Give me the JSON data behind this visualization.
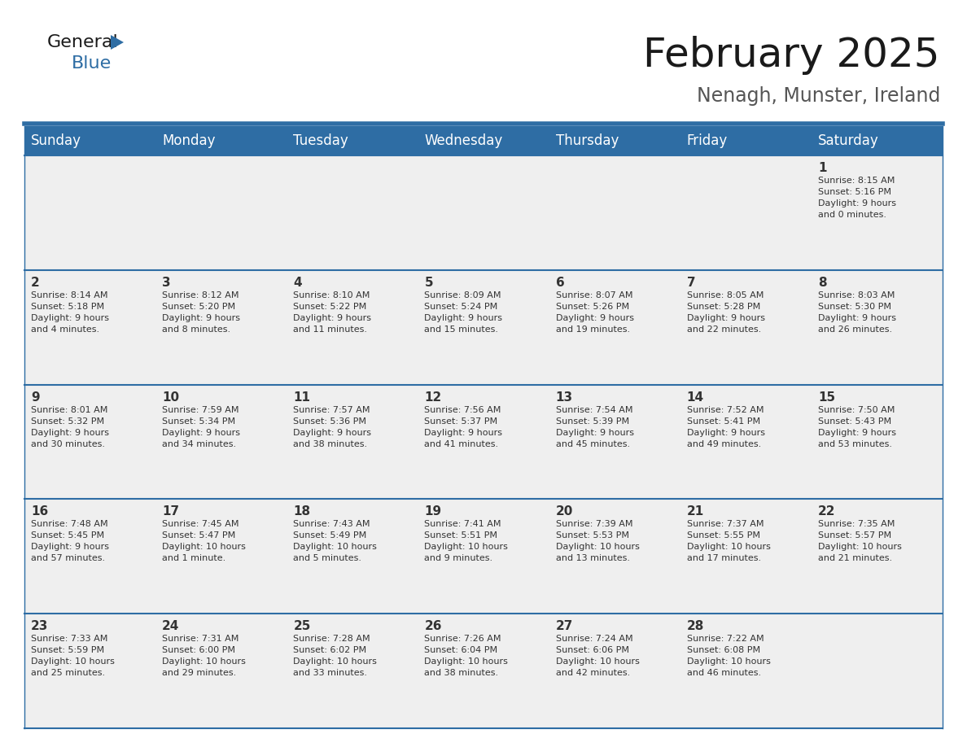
{
  "title": "February 2025",
  "subtitle": "Nenagh, Munster, Ireland",
  "header_color": "#2E6DA4",
  "header_text_color": "#FFFFFF",
  "cell_bg_color": "#EFEFEF",
  "white_bg": "#FFFFFF",
  "border_color": "#2E6DA4",
  "text_color": "#333333",
  "days_of_week": [
    "Sunday",
    "Monday",
    "Tuesday",
    "Wednesday",
    "Thursday",
    "Friday",
    "Saturday"
  ],
  "weeks": [
    [
      {
        "day": "",
        "info": ""
      },
      {
        "day": "",
        "info": ""
      },
      {
        "day": "",
        "info": ""
      },
      {
        "day": "",
        "info": ""
      },
      {
        "day": "",
        "info": ""
      },
      {
        "day": "",
        "info": ""
      },
      {
        "day": "1",
        "info": "Sunrise: 8:15 AM\nSunset: 5:16 PM\nDaylight: 9 hours\nand 0 minutes."
      }
    ],
    [
      {
        "day": "2",
        "info": "Sunrise: 8:14 AM\nSunset: 5:18 PM\nDaylight: 9 hours\nand 4 minutes."
      },
      {
        "day": "3",
        "info": "Sunrise: 8:12 AM\nSunset: 5:20 PM\nDaylight: 9 hours\nand 8 minutes."
      },
      {
        "day": "4",
        "info": "Sunrise: 8:10 AM\nSunset: 5:22 PM\nDaylight: 9 hours\nand 11 minutes."
      },
      {
        "day": "5",
        "info": "Sunrise: 8:09 AM\nSunset: 5:24 PM\nDaylight: 9 hours\nand 15 minutes."
      },
      {
        "day": "6",
        "info": "Sunrise: 8:07 AM\nSunset: 5:26 PM\nDaylight: 9 hours\nand 19 minutes."
      },
      {
        "day": "7",
        "info": "Sunrise: 8:05 AM\nSunset: 5:28 PM\nDaylight: 9 hours\nand 22 minutes."
      },
      {
        "day": "8",
        "info": "Sunrise: 8:03 AM\nSunset: 5:30 PM\nDaylight: 9 hours\nand 26 minutes."
      }
    ],
    [
      {
        "day": "9",
        "info": "Sunrise: 8:01 AM\nSunset: 5:32 PM\nDaylight: 9 hours\nand 30 minutes."
      },
      {
        "day": "10",
        "info": "Sunrise: 7:59 AM\nSunset: 5:34 PM\nDaylight: 9 hours\nand 34 minutes."
      },
      {
        "day": "11",
        "info": "Sunrise: 7:57 AM\nSunset: 5:36 PM\nDaylight: 9 hours\nand 38 minutes."
      },
      {
        "day": "12",
        "info": "Sunrise: 7:56 AM\nSunset: 5:37 PM\nDaylight: 9 hours\nand 41 minutes."
      },
      {
        "day": "13",
        "info": "Sunrise: 7:54 AM\nSunset: 5:39 PM\nDaylight: 9 hours\nand 45 minutes."
      },
      {
        "day": "14",
        "info": "Sunrise: 7:52 AM\nSunset: 5:41 PM\nDaylight: 9 hours\nand 49 minutes."
      },
      {
        "day": "15",
        "info": "Sunrise: 7:50 AM\nSunset: 5:43 PM\nDaylight: 9 hours\nand 53 minutes."
      }
    ],
    [
      {
        "day": "16",
        "info": "Sunrise: 7:48 AM\nSunset: 5:45 PM\nDaylight: 9 hours\nand 57 minutes."
      },
      {
        "day": "17",
        "info": "Sunrise: 7:45 AM\nSunset: 5:47 PM\nDaylight: 10 hours\nand 1 minute."
      },
      {
        "day": "18",
        "info": "Sunrise: 7:43 AM\nSunset: 5:49 PM\nDaylight: 10 hours\nand 5 minutes."
      },
      {
        "day": "19",
        "info": "Sunrise: 7:41 AM\nSunset: 5:51 PM\nDaylight: 10 hours\nand 9 minutes."
      },
      {
        "day": "20",
        "info": "Sunrise: 7:39 AM\nSunset: 5:53 PM\nDaylight: 10 hours\nand 13 minutes."
      },
      {
        "day": "21",
        "info": "Sunrise: 7:37 AM\nSunset: 5:55 PM\nDaylight: 10 hours\nand 17 minutes."
      },
      {
        "day": "22",
        "info": "Sunrise: 7:35 AM\nSunset: 5:57 PM\nDaylight: 10 hours\nand 21 minutes."
      }
    ],
    [
      {
        "day": "23",
        "info": "Sunrise: 7:33 AM\nSunset: 5:59 PM\nDaylight: 10 hours\nand 25 minutes."
      },
      {
        "day": "24",
        "info": "Sunrise: 7:31 AM\nSunset: 6:00 PM\nDaylight: 10 hours\nand 29 minutes."
      },
      {
        "day": "25",
        "info": "Sunrise: 7:28 AM\nSunset: 6:02 PM\nDaylight: 10 hours\nand 33 minutes."
      },
      {
        "day": "26",
        "info": "Sunrise: 7:26 AM\nSunset: 6:04 PM\nDaylight: 10 hours\nand 38 minutes."
      },
      {
        "day": "27",
        "info": "Sunrise: 7:24 AM\nSunset: 6:06 PM\nDaylight: 10 hours\nand 42 minutes."
      },
      {
        "day": "28",
        "info": "Sunrise: 7:22 AM\nSunset: 6:08 PM\nDaylight: 10 hours\nand 46 minutes."
      },
      {
        "day": "",
        "info": ""
      }
    ]
  ],
  "logo_text1": "General",
  "logo_text2": "Blue",
  "logo_color1": "#1a1a1a",
  "logo_color2": "#2E6DA4",
  "logo_triangle_color": "#2E6DA4",
  "title_fontsize": 36,
  "subtitle_fontsize": 17,
  "header_fontsize": 12,
  "day_num_fontsize": 11,
  "cell_text_fontsize": 8
}
